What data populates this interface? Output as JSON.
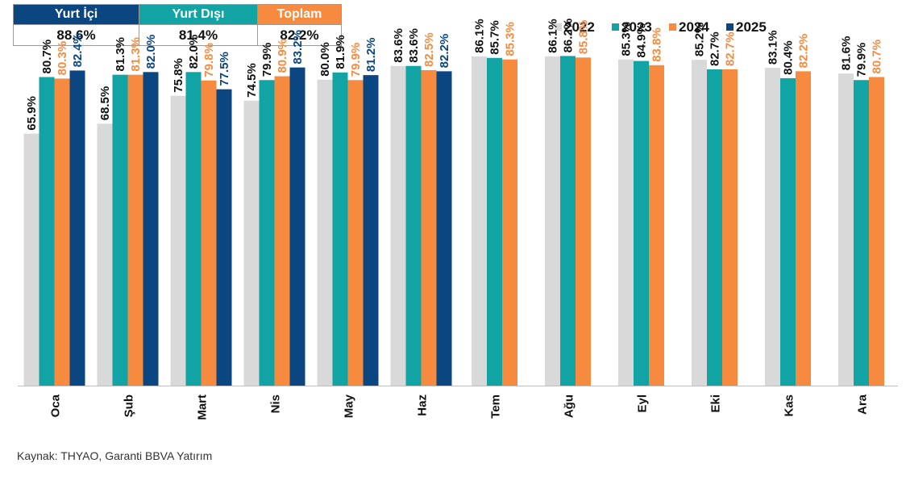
{
  "summary": {
    "headers": [
      "Yurt İçi",
      "Yurt Dışı",
      "Toplam"
    ],
    "values": [
      "88.6%",
      "81.4%",
      "82.2%"
    ],
    "header_colors": [
      "#0b4680",
      "#12a4a4",
      "#f68b40"
    ]
  },
  "source": "Kaynak: THYAO, Garanti BBVA Yatırım",
  "chart_data": {
    "type": "bar",
    "categories": [
      "Oca",
      "Şub",
      "Mart",
      "Nis",
      "May",
      "Haz",
      "Tem",
      "Ağu",
      "Eyl",
      "Eki",
      "Kas",
      "Ara"
    ],
    "series": [
      {
        "name": "2022",
        "color": "#d9d9d9",
        "label_color": "#111111",
        "values": [
          65.9,
          68.5,
          75.8,
          74.5,
          80.0,
          83.6,
          86.1,
          86.1,
          85.3,
          85.2,
          83.1,
          81.6
        ],
        "labels": [
          "65.9%",
          "68.5%",
          "75.8%",
          "74.5%",
          "80.0%",
          "83.6%",
          "86.1%",
          "86.1%",
          "85.3%",
          "85.2%",
          "83.1%",
          "81.6%"
        ]
      },
      {
        "name": "2023",
        "color": "#12a4a4",
        "label_color": "#111111",
        "values": [
          80.7,
          81.3,
          82.0,
          79.9,
          81.9,
          83.6,
          85.7,
          86.2,
          84.9,
          82.7,
          80.4,
          79.9
        ],
        "labels": [
          "80.7%",
          "81.3%",
          "82.0%",
          "79.9%",
          "81.9%",
          "83.6%",
          "85.7%",
          "86.2%",
          "84.9%",
          "82.7%",
          "80.4%",
          "79.9%"
        ]
      },
      {
        "name": "2024",
        "color": "#f68b40",
        "label_color": "#f68b40",
        "values": [
          80.3,
          81.3,
          79.8,
          80.9,
          79.9,
          82.5,
          85.3,
          85.8,
          83.8,
          82.7,
          82.2,
          80.7
        ],
        "labels": [
          "80.3%",
          "81.3%",
          "79.8%",
          "80.9%",
          "79.9%",
          "82.5%",
          "85.3%",
          "85.8%",
          "83.8%",
          "82.7%",
          "82.2%",
          "80.7%"
        ]
      },
      {
        "name": "2025",
        "color": "#0b4680",
        "label_color": "#0b4680",
        "values": [
          82.4,
          82.0,
          77.5,
          83.2,
          81.2,
          82.2,
          null,
          null,
          null,
          null,
          null,
          null
        ],
        "labels": [
          "82.4%",
          "82.0%",
          "77.5%",
          "83.2%",
          "81.2%",
          "82.2%",
          "",
          "",
          "",
          "",
          "",
          ""
        ]
      }
    ],
    "ylim": [
      0,
      100
    ],
    "grid": false,
    "legend_position": "top-right"
  }
}
